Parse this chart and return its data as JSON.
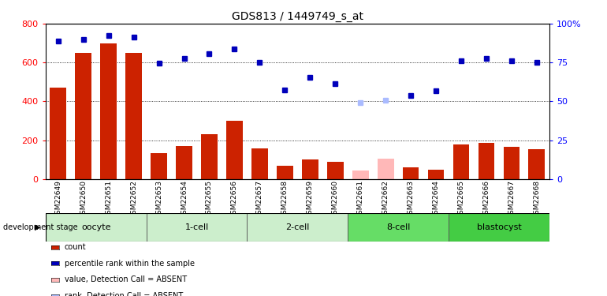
{
  "title": "GDS813 / 1449749_s_at",
  "samples": [
    "GSM22649",
    "GSM22650",
    "GSM22651",
    "GSM22652",
    "GSM22653",
    "GSM22654",
    "GSM22655",
    "GSM22656",
    "GSM22657",
    "GSM22658",
    "GSM22659",
    "GSM22660",
    "GSM22661",
    "GSM22662",
    "GSM22663",
    "GSM22664",
    "GSM22665",
    "GSM22666",
    "GSM22667",
    "GSM22668"
  ],
  "count_values": [
    470,
    650,
    700,
    650,
    135,
    170,
    230,
    300,
    160,
    70,
    100,
    90,
    null,
    null,
    60,
    50,
    180,
    185,
    165,
    155
  ],
  "count_absent": [
    null,
    null,
    null,
    null,
    null,
    null,
    null,
    null,
    null,
    null,
    null,
    null,
    45,
    105,
    null,
    null,
    null,
    null,
    null,
    null
  ],
  "percentile_values": [
    710,
    720,
    740,
    730,
    595,
    620,
    645,
    672,
    600,
    460,
    525,
    490,
    null,
    null,
    430,
    455,
    610,
    620,
    610,
    600
  ],
  "percentile_absent": [
    null,
    null,
    null,
    null,
    null,
    null,
    null,
    null,
    null,
    null,
    null,
    null,
    395,
    405,
    null,
    null,
    null,
    null,
    null,
    null
  ],
  "stage_groups": [
    {
      "label": "oocyte",
      "start": 0,
      "end": 3,
      "color": "#cceecc"
    },
    {
      "label": "1-cell",
      "start": 4,
      "end": 7,
      "color": "#cceecc"
    },
    {
      "label": "2-cell",
      "start": 8,
      "end": 11,
      "color": "#cceecc"
    },
    {
      "label": "8-cell",
      "start": 12,
      "end": 15,
      "color": "#66dd66"
    },
    {
      "label": "blastocyst",
      "start": 16,
      "end": 19,
      "color": "#44cc44"
    }
  ],
  "bar_color": "#cc2200",
  "bar_absent_color": "#ffb8b8",
  "dot_color": "#0000bb",
  "dot_absent_color": "#aabbff",
  "ylim_left": [
    0,
    800
  ],
  "ylim_right": [
    0,
    100
  ],
  "grid_values": [
    200,
    400,
    600
  ],
  "legend_items": [
    {
      "label": "count",
      "color": "#cc2200"
    },
    {
      "label": "percentile rank within the sample",
      "color": "#0000bb"
    },
    {
      "label": "value, Detection Call = ABSENT",
      "color": "#ffb8b8"
    },
    {
      "label": "rank, Detection Call = ABSENT",
      "color": "#aabbff"
    }
  ]
}
